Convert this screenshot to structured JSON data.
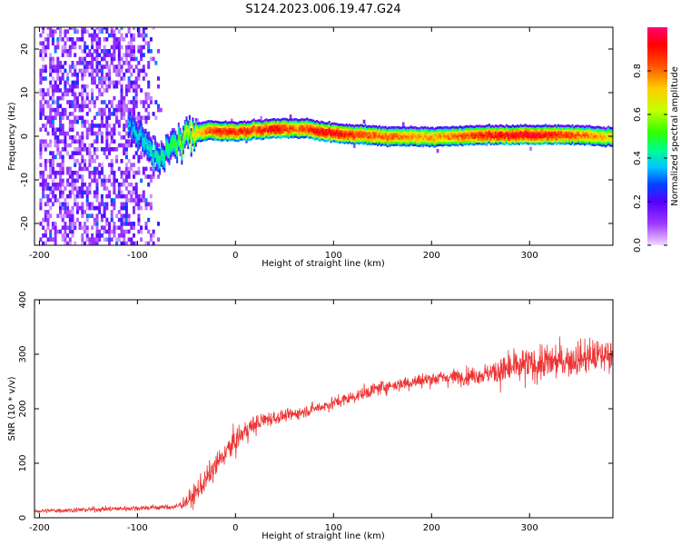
{
  "title": "S124.2023.006.19.47.G24",
  "chart_data": [
    {
      "type": "heatmap",
      "xlabel": "Height of straight line (km)",
      "ylabel": "Frequency (Hz)",
      "xlim": [
        -205,
        385
      ],
      "ylim": [
        -25,
        25
      ],
      "xticks": [
        -200,
        -100,
        0,
        100,
        200,
        300
      ],
      "yticks": [
        -20,
        -10,
        0,
        10,
        20
      ],
      "colorbar": {
        "label": "Normalized spectral amplitude",
        "range": [
          0,
          1
        ],
        "ticks": [
          "0.0",
          "0.2",
          "0.4",
          "0.6",
          "0.8"
        ],
        "tick_values": [
          0,
          0.2,
          0.4,
          0.6,
          0.8
        ],
        "colors": [
          "#f2d8ff",
          "#9d38ff",
          "#5500ff",
          "#0044ff",
          "#00c8ff",
          "#00ff88",
          "#33ff00",
          "#c8ff00",
          "#ffcc00",
          "#ff5500",
          "#ff0000",
          "#ff0077"
        ]
      },
      "noise_region": {
        "x_range": [
          -200,
          -75
        ],
        "y_range": [
          -25,
          25
        ],
        "level": 0.25
      },
      "ridge": [
        {
          "x": -110,
          "y": 3
        },
        {
          "x": -95,
          "y": -2
        },
        {
          "x": -80,
          "y": -5
        },
        {
          "x": -65,
          "y": -3
        },
        {
          "x": -50,
          "y": 0
        },
        {
          "x": -30,
          "y": 1
        },
        {
          "x": 0,
          "y": 0.8
        },
        {
          "x": 40,
          "y": 1.5
        },
        {
          "x": 70,
          "y": 1.5
        },
        {
          "x": 100,
          "y": 0.5
        },
        {
          "x": 150,
          "y": -0.3
        },
        {
          "x": 200,
          "y": -0.5
        },
        {
          "x": 250,
          "y": 0
        },
        {
          "x": 300,
          "y": 0
        },
        {
          "x": 350,
          "y": 0
        },
        {
          "x": 385,
          "y": -0.5
        }
      ],
      "ridge_amplitude": [
        {
          "x": -110,
          "a": 0.35
        },
        {
          "x": -70,
          "a": 0.45
        },
        {
          "x": -40,
          "a": 0.7
        },
        {
          "x": -20,
          "a": 0.9
        },
        {
          "x": 20,
          "a": 0.85
        },
        {
          "x": 40,
          "a": 0.95
        },
        {
          "x": 60,
          "a": 0.8
        },
        {
          "x": 90,
          "a": 0.95
        },
        {
          "x": 130,
          "a": 0.85
        },
        {
          "x": 200,
          "a": 0.75
        },
        {
          "x": 260,
          "a": 0.9
        },
        {
          "x": 300,
          "a": 0.95
        },
        {
          "x": 340,
          "a": 0.85
        },
        {
          "x": 385,
          "a": 0.7
        }
      ]
    },
    {
      "type": "line",
      "xlabel": "Height of straight line (km)",
      "ylabel": "SNR (10 * v/v)",
      "xlim": [
        -205,
        385
      ],
      "ylim": [
        0,
        400
      ],
      "xticks": [
        -200,
        -100,
        0,
        100,
        200,
        300
      ],
      "yticks": [
        0,
        100,
        200,
        300,
        400
      ],
      "color": "#ee3333",
      "trend": [
        {
          "x": -205,
          "y": 12
        },
        {
          "x": -60,
          "y": 20
        },
        {
          "x": -45,
          "y": 35
        },
        {
          "x": -30,
          "y": 70
        },
        {
          "x": -10,
          "y": 120
        },
        {
          "x": 10,
          "y": 160
        },
        {
          "x": 30,
          "y": 180
        },
        {
          "x": 60,
          "y": 190
        },
        {
          "x": 100,
          "y": 210
        },
        {
          "x": 150,
          "y": 240
        },
        {
          "x": 200,
          "y": 255
        },
        {
          "x": 250,
          "y": 262
        },
        {
          "x": 300,
          "y": 280
        },
        {
          "x": 385,
          "y": 300
        }
      ],
      "noise": [
        {
          "x": -205,
          "s": 4
        },
        {
          "x": -60,
          "s": 5
        },
        {
          "x": -40,
          "s": 20
        },
        {
          "x": 0,
          "s": 22
        },
        {
          "x": 50,
          "s": 10
        },
        {
          "x": 150,
          "s": 12
        },
        {
          "x": 250,
          "s": 15
        },
        {
          "x": 280,
          "s": 32
        },
        {
          "x": 385,
          "s": 30
        }
      ]
    }
  ]
}
